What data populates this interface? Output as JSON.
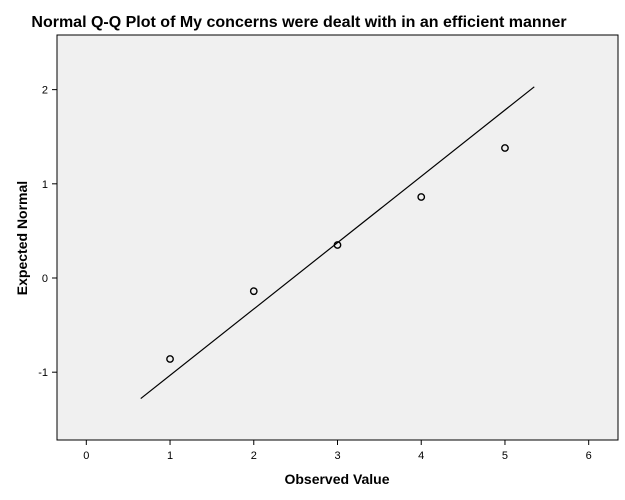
{
  "chart_data": {
    "type": "scatter",
    "title": "Normal Q-Q Plot of My concerns were dealt with in an efficient manner",
    "xlabel": "Observed Value",
    "ylabel": "Expected Normal",
    "xlim": [
      -0.35,
      6.35
    ],
    "ylim": [
      -1.72,
      2.58
    ],
    "x_ticks": [
      0,
      1,
      2,
      3,
      4,
      5,
      6
    ],
    "y_ticks": [
      -1,
      0,
      1,
      2
    ],
    "grid": false,
    "legend": "none",
    "series": [
      {
        "points": [
          {
            "x": 1,
            "y": -0.86
          },
          {
            "x": 2,
            "y": -0.14
          },
          {
            "x": 3,
            "y": 0.35
          },
          {
            "x": 4,
            "y": 0.86
          },
          {
            "x": 5,
            "y": 1.38
          }
        ]
      }
    ],
    "reference_line": {
      "x": [
        0.65,
        5.35
      ],
      "y": [
        -1.28,
        2.03
      ]
    },
    "colors": {
      "plot_background": "#f0f0f0",
      "page_background": "#ffffff",
      "ink": "#000000"
    }
  }
}
